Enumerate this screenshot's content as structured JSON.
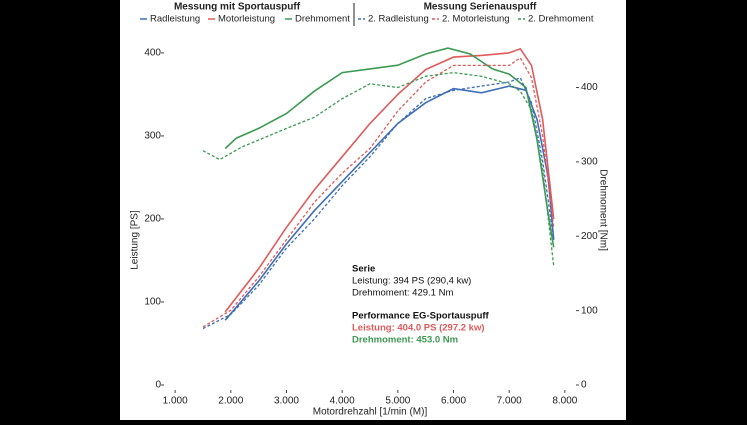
{
  "chart_data": {
    "type": "line",
    "legend_groups": [
      "Messung mit Sportauspuff",
      "Messung Serienauspuff"
    ],
    "xlabel": "Motordrehzahl [1/min (M)]",
    "ylabel": "Leistung [PS]",
    "y2label": "Drehmoment [Nm]",
    "xlim": [
      800,
      8200
    ],
    "ylim": [
      0,
      430
    ],
    "y2lim": [
      0,
      480
    ],
    "xticks": [
      {
        "value": 1000,
        "label": "1.000"
      },
      {
        "value": 2000,
        "label": "2.000"
      },
      {
        "value": 3000,
        "label": "3.000"
      },
      {
        "value": 4000,
        "label": "4.000"
      },
      {
        "value": 5000,
        "label": "5.000"
      },
      {
        "value": 6000,
        "label": "6.000"
      },
      {
        "value": 7000,
        "label": "7.000"
      },
      {
        "value": 8000,
        "label": "8.000"
      }
    ],
    "yticks": [
      0,
      100,
      200,
      300,
      400
    ],
    "y2ticks": [
      0,
      100,
      200,
      300,
      400
    ],
    "series": [
      {
        "name": "Radleistung",
        "color": "#3f6fb8",
        "dash": false,
        "group": 0,
        "x": [
          1900,
          2500,
          3000,
          3500,
          4000,
          4500,
          5000,
          5500,
          6000,
          6500,
          7000,
          7300,
          7500,
          7700,
          7800
        ],
        "values": [
          78,
          125,
          170,
          210,
          245,
          280,
          315,
          340,
          357,
          352,
          360,
          355,
          320,
          250,
          175
        ]
      },
      {
        "name": "Motorleistung",
        "color": "#e05a5a",
        "dash": false,
        "group": 0,
        "x": [
          1900,
          2500,
          3000,
          3500,
          4000,
          4500,
          5000,
          5500,
          6000,
          6500,
          7000,
          7200,
          7400,
          7600,
          7800
        ],
        "values": [
          88,
          140,
          190,
          235,
          275,
          315,
          350,
          380,
          395,
          397,
          400,
          405,
          385,
          320,
          200
        ]
      },
      {
        "name": "Drehmoment",
        "color": "#3c9a52",
        "dash": false,
        "group": 0,
        "axis": "y2",
        "x": [
          1900,
          2100,
          2500,
          3000,
          3500,
          4000,
          4500,
          5000,
          5500,
          5900,
          6300,
          6700,
          7000,
          7300,
          7500,
          7700,
          7800
        ],
        "values": [
          318,
          332,
          345,
          365,
          395,
          420,
          425,
          430,
          445,
          453,
          445,
          425,
          418,
          400,
          330,
          230,
          185
        ]
      },
      {
        "name": "2. Radleistung",
        "color": "#3f6fb8",
        "dash": true,
        "group": 1,
        "x": [
          1500,
          2000,
          2500,
          3000,
          3500,
          4000,
          4500,
          5000,
          5500,
          6000,
          6500,
          7000,
          7200,
          7400,
          7600,
          7800
        ],
        "values": [
          68,
          85,
          120,
          165,
          200,
          240,
          275,
          315,
          345,
          355,
          360,
          365,
          370,
          340,
          270,
          175
        ]
      },
      {
        "name": "2. Motorleistung",
        "color": "#e05a5a",
        "dash": true,
        "group": 1,
        "x": [
          1500,
          2000,
          2500,
          3000,
          3500,
          4000,
          4500,
          5000,
          5500,
          6000,
          6500,
          7000,
          7200,
          7400,
          7600,
          7800
        ],
        "values": [
          70,
          90,
          130,
          175,
          220,
          255,
          285,
          330,
          365,
          385,
          385,
          385,
          394,
          370,
          300,
          190
        ]
      },
      {
        "name": "2. Drehmoment",
        "color": "#3c9a52",
        "dash": true,
        "group": 1,
        "axis": "y2",
        "x": [
          1500,
          1800,
          2200,
          3000,
          3500,
          4000,
          4500,
          5000,
          5500,
          6000,
          6500,
          7000,
          7200,
          7400,
          7600,
          7800
        ],
        "values": [
          315,
          303,
          320,
          345,
          360,
          385,
          405,
          400,
          415,
          420,
          415,
          405,
          395,
          370,
          290,
          160
        ]
      }
    ],
    "annotations": [
      {
        "text": "Serie",
        "bold": true,
        "color": "#111"
      },
      {
        "text": "Leistung: 394 PS (290,4 kw)",
        "bold": false,
        "color": "#111"
      },
      {
        "text": "Drehmoment: 429.1 Nm",
        "bold": false,
        "color": "#111"
      },
      {
        "text": "Performance EG-Sportauspuff",
        "bold": true,
        "color": "#111"
      },
      {
        "text": "Leistung: 404.0 PS (297.2 kw)",
        "bold": true,
        "color": "#e05a5a"
      },
      {
        "text": "Drehmoment: 453.0 Nm",
        "bold": true,
        "color": "#3c9a52"
      }
    ]
  }
}
